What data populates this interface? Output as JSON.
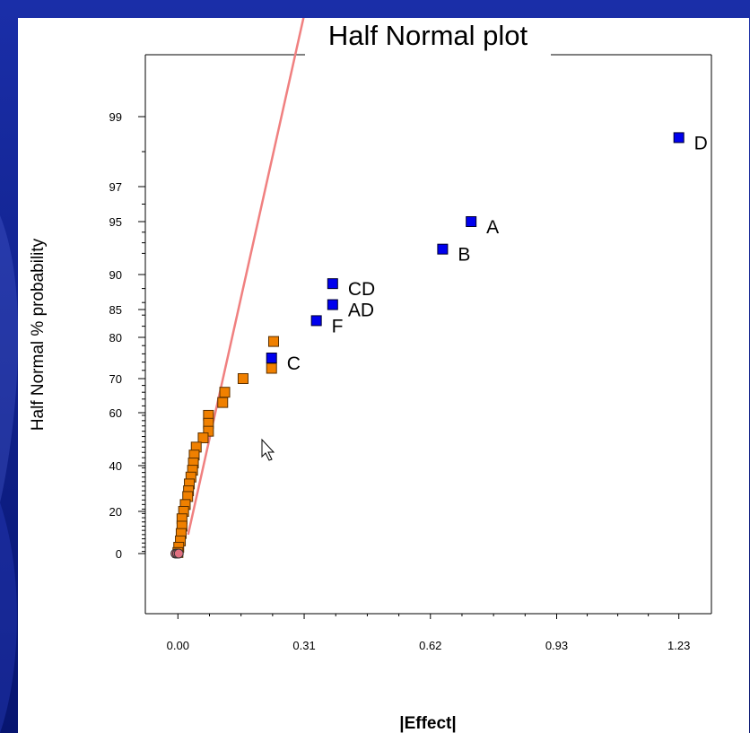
{
  "chart_data": {
    "type": "scatter",
    "title": "Half Normal plot",
    "xlabel": "|Effect|",
    "ylabel": "Half Normal % probability",
    "xlim": [
      -0.08,
      1.31
    ],
    "x_ticks": [
      0.0,
      0.31,
      0.62,
      0.93,
      1.23
    ],
    "x_tick_labels": [
      "0.00",
      "0.31",
      "0.62",
      "0.93",
      "1.23"
    ],
    "y_ticks": [
      0,
      20,
      40,
      60,
      70,
      80,
      85,
      90,
      95,
      97,
      99
    ],
    "y_tick_labels": [
      "0",
      "20",
      "40",
      "60",
      "70",
      "80",
      "85",
      "90",
      "95",
      "97",
      "99"
    ],
    "grid": false,
    "colors": {
      "effect": "#0000ee",
      "error": "#f08000",
      "origin": "#e07080",
      "line": "#f08080",
      "background": "#0d1f8c"
    },
    "effects": [
      {
        "label": "D",
        "x": 1.23,
        "y": 98.4
      },
      {
        "label": "A",
        "x": 0.72,
        "y": 95.0
      },
      {
        "label": "B",
        "x": 0.65,
        "y": 92.4
      },
      {
        "label": "CD",
        "x": 0.38,
        "y": 88.7
      },
      {
        "label": "AD",
        "x": 0.38,
        "y": 85.7
      },
      {
        "label": "F",
        "x": 0.34,
        "y": 83.0
      },
      {
        "label": "C",
        "x": 0.23,
        "y": 75.0
      }
    ],
    "error_points": [
      {
        "x": 0.235,
        "y": 79.0
      },
      {
        "x": 0.23,
        "y": 72.5
      },
      {
        "x": 0.16,
        "y": 70.0
      },
      {
        "x": 0.115,
        "y": 66.0
      },
      {
        "x": 0.11,
        "y": 63.0
      },
      {
        "x": 0.075,
        "y": 59.0
      },
      {
        "x": 0.075,
        "y": 56.0
      },
      {
        "x": 0.075,
        "y": 53.0
      },
      {
        "x": 0.062,
        "y": 50.5
      },
      {
        "x": 0.045,
        "y": 47.0
      },
      {
        "x": 0.04,
        "y": 44.0
      },
      {
        "x": 0.038,
        "y": 41.0
      },
      {
        "x": 0.036,
        "y": 38.0
      },
      {
        "x": 0.032,
        "y": 35.0
      },
      {
        "x": 0.028,
        "y": 32.0
      },
      {
        "x": 0.026,
        "y": 29.0
      },
      {
        "x": 0.024,
        "y": 26.5
      },
      {
        "x": 0.018,
        "y": 23.0
      },
      {
        "x": 0.014,
        "y": 20.0
      },
      {
        "x": 0.01,
        "y": 16.5
      },
      {
        "x": 0.01,
        "y": 13.0
      },
      {
        "x": 0.008,
        "y": 9.5
      },
      {
        "x": 0.006,
        "y": 6.0
      },
      {
        "x": 0.002,
        "y": 3.0
      },
      {
        "x": 0.0,
        "y": 0.5
      }
    ],
    "origin_points": [
      {
        "x": -0.006,
        "y": 0
      },
      {
        "x": -0.002,
        "y": 0
      },
      {
        "x": 0.002,
        "y": 0
      }
    ],
    "reference_line": {
      "x1": 0.025,
      "y1": 9,
      "x2": 0.51,
      "y2": 112
    }
  }
}
